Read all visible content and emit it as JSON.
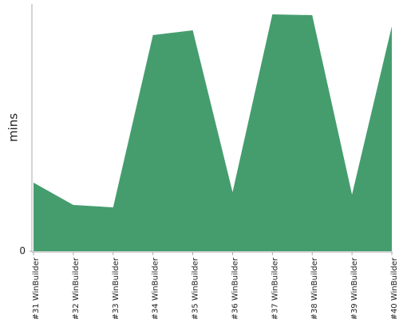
{
  "chart_data": {
    "type": "area",
    "y_label": "mins",
    "categories": [
      "#31 WinBuilder",
      "#32 WinBuilder",
      "#33 WinBuilder",
      "#34 WinBuilder",
      "#35 WinBuilder",
      "#36 WinBuilder",
      "#37 WinBuilder",
      "#38 WinBuilder",
      "#39 WinBuilder",
      "#40 WinBuilder"
    ],
    "values": [
      8.6,
      5.8,
      5.5,
      27.1,
      27.7,
      7.4,
      29.7,
      29.6,
      7.1,
      28.2
    ],
    "color": "#459d6e",
    "ylim": [
      0,
      31
    ],
    "yticks": [
      0
    ]
  }
}
